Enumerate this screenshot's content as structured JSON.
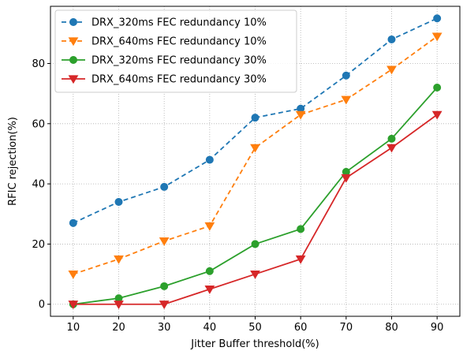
{
  "chart_data": {
    "type": "line",
    "title": "",
    "xlabel": "Jitter Buffer threshold(%)",
    "ylabel": "RFIC rejection(%)",
    "x": [
      10,
      20,
      30,
      40,
      50,
      60,
      70,
      80,
      90
    ],
    "xlim": [
      5,
      95
    ],
    "ylim": [
      -4,
      99
    ],
    "xticks": [
      10,
      20,
      30,
      40,
      50,
      60,
      70,
      80,
      90
    ],
    "yticks": [
      0,
      20,
      40,
      60,
      80
    ],
    "grid": true,
    "legend_position": "top-left",
    "series": [
      {
        "name": "DRX_320ms FEC redundancy 10%",
        "color": "#1f77b4",
        "linestyle": "dashed",
        "marker": "circle",
        "values": [
          27,
          34,
          39,
          48,
          62,
          65,
          76,
          88,
          95
        ]
      },
      {
        "name": "DRX_640ms FEC redundancy 10%",
        "color": "#ff7f0e",
        "linestyle": "dashed",
        "marker": "triangle-down",
        "values": [
          10,
          15,
          21,
          26,
          52,
          63,
          68,
          78,
          89
        ]
      },
      {
        "name": "DRX_320ms FEC redundancy 30%",
        "color": "#2ca02c",
        "linestyle": "solid",
        "marker": "circle",
        "values": [
          0,
          2,
          6,
          11,
          20,
          25,
          44,
          55,
          72
        ]
      },
      {
        "name": "DRX_640ms FEC redundancy 30%",
        "color": "#d62728",
        "linestyle": "solid",
        "marker": "triangle-down",
        "values": [
          0,
          0,
          0,
          5,
          10,
          15,
          42,
          52,
          63
        ]
      }
    ]
  }
}
